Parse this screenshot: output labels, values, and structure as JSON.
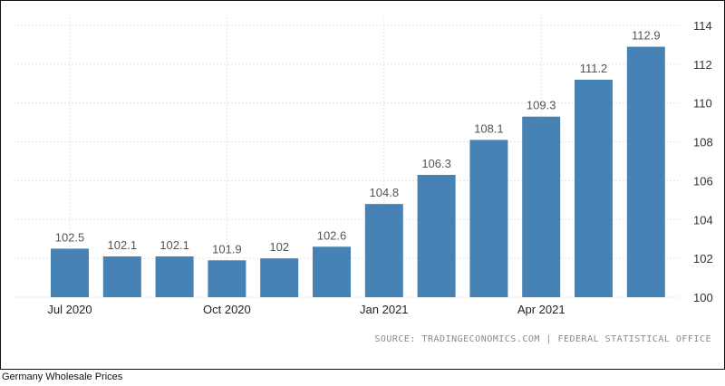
{
  "chart_data": {
    "type": "bar",
    "title": "",
    "xlabel": "",
    "ylabel": "",
    "categories": [
      "Jul 2020",
      "Aug 2020",
      "Sep 2020",
      "Oct 2020",
      "Nov 2020",
      "Dec 2020",
      "Jan 2021",
      "Feb 2021",
      "Mar 2021",
      "Apr 2021",
      "May 2021",
      "Jun 2021"
    ],
    "values": [
      102.5,
      102.1,
      102.1,
      101.9,
      102,
      102.6,
      104.8,
      106.3,
      108.1,
      109.3,
      111.2,
      112.9
    ],
    "value_labels": [
      "102.5",
      "102.1",
      "102.1",
      "101.9",
      "102",
      "102.6",
      "104.8",
      "106.3",
      "108.1",
      "109.3",
      "111.2",
      "112.9"
    ],
    "x_tick_labels": [
      {
        "category": "Jul 2020",
        "label": "Jul 2020"
      },
      {
        "category": "Oct 2020",
        "label": "Oct 2020"
      },
      {
        "category": "Jan 2021",
        "label": "Jan 2021"
      },
      {
        "category": "Apr 2021",
        "label": "Apr 2021"
      }
    ],
    "ylim": [
      100,
      114
    ],
    "y_ticks": [
      100,
      102,
      104,
      106,
      108,
      110,
      112,
      114
    ],
    "y_axis_side": "right",
    "grid": true,
    "bar_color": "#4682b4",
    "source": "SOURCE: TRADINGECONOMICS.COM | FEDERAL STATISTICAL OFFICE"
  },
  "caption": "Germany Wholesale Prices"
}
